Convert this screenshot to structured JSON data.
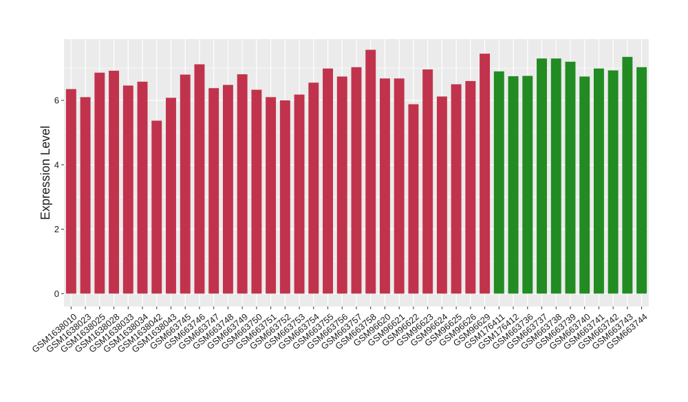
{
  "chart_data": {
    "type": "bar",
    "ylabel": "Expression Level",
    "xlabel": "",
    "ylim": [
      -0.4,
      7.9
    ],
    "yticks": [
      0,
      2,
      4,
      6
    ],
    "grid": true,
    "categories": [
      "GSM1638010",
      "GSM1638023",
      "GSM1638025",
      "GSM1638028",
      "GSM1638033",
      "GSM1638034",
      "GSM1638042",
      "GSM1638043",
      "GSM663745",
      "GSM663746",
      "GSM663747",
      "GSM663748",
      "GSM663749",
      "GSM663750",
      "GSM663751",
      "GSM663752",
      "GSM663753",
      "GSM663754",
      "GSM663755",
      "GSM663756",
      "GSM663757",
      "GSM663758",
      "GSM96620",
      "GSM96621",
      "GSM96622",
      "GSM96623",
      "GSM96624",
      "GSM96625",
      "GSM96626",
      "GSM96629",
      "GSM176411",
      "GSM176412",
      "GSM663736",
      "GSM663737",
      "GSM663738",
      "GSM663739",
      "GSM663740",
      "GSM663741",
      "GSM663742",
      "GSM663743",
      "GSM663744"
    ],
    "values": [
      6.35,
      6.1,
      6.86,
      6.92,
      6.46,
      6.58,
      5.37,
      6.08,
      6.8,
      7.12,
      6.38,
      6.48,
      6.81,
      6.33,
      6.1,
      6.0,
      6.18,
      6.55,
      6.99,
      6.74,
      7.03,
      7.57,
      6.68,
      6.68,
      5.88,
      6.96,
      6.12,
      6.5,
      6.6,
      7.45,
      6.9,
      6.75,
      6.76,
      7.3,
      7.3,
      7.2,
      6.74,
      6.99,
      6.93,
      7.35,
      7.03
    ],
    "bar_colors": [
      "#c1334c",
      "#c1334c",
      "#c1334c",
      "#c1334c",
      "#c1334c",
      "#c1334c",
      "#c1334c",
      "#c1334c",
      "#c1334c",
      "#c1334c",
      "#c1334c",
      "#c1334c",
      "#c1334c",
      "#c1334c",
      "#c1334c",
      "#c1334c",
      "#c1334c",
      "#c1334c",
      "#c1334c",
      "#c1334c",
      "#c1334c",
      "#c1334c",
      "#c1334c",
      "#c1334c",
      "#c1334c",
      "#c1334c",
      "#c1334c",
      "#c1334c",
      "#c1334c",
      "#c1334c",
      "#228b22",
      "#228b22",
      "#228b22",
      "#228b22",
      "#228b22",
      "#228b22",
      "#228b22",
      "#228b22",
      "#228b22",
      "#228b22",
      "#228b22"
    ],
    "colors": {
      "panel": "#ebebeb",
      "grid": "#ffffff",
      "axis_text": "#1a1a1a"
    }
  }
}
